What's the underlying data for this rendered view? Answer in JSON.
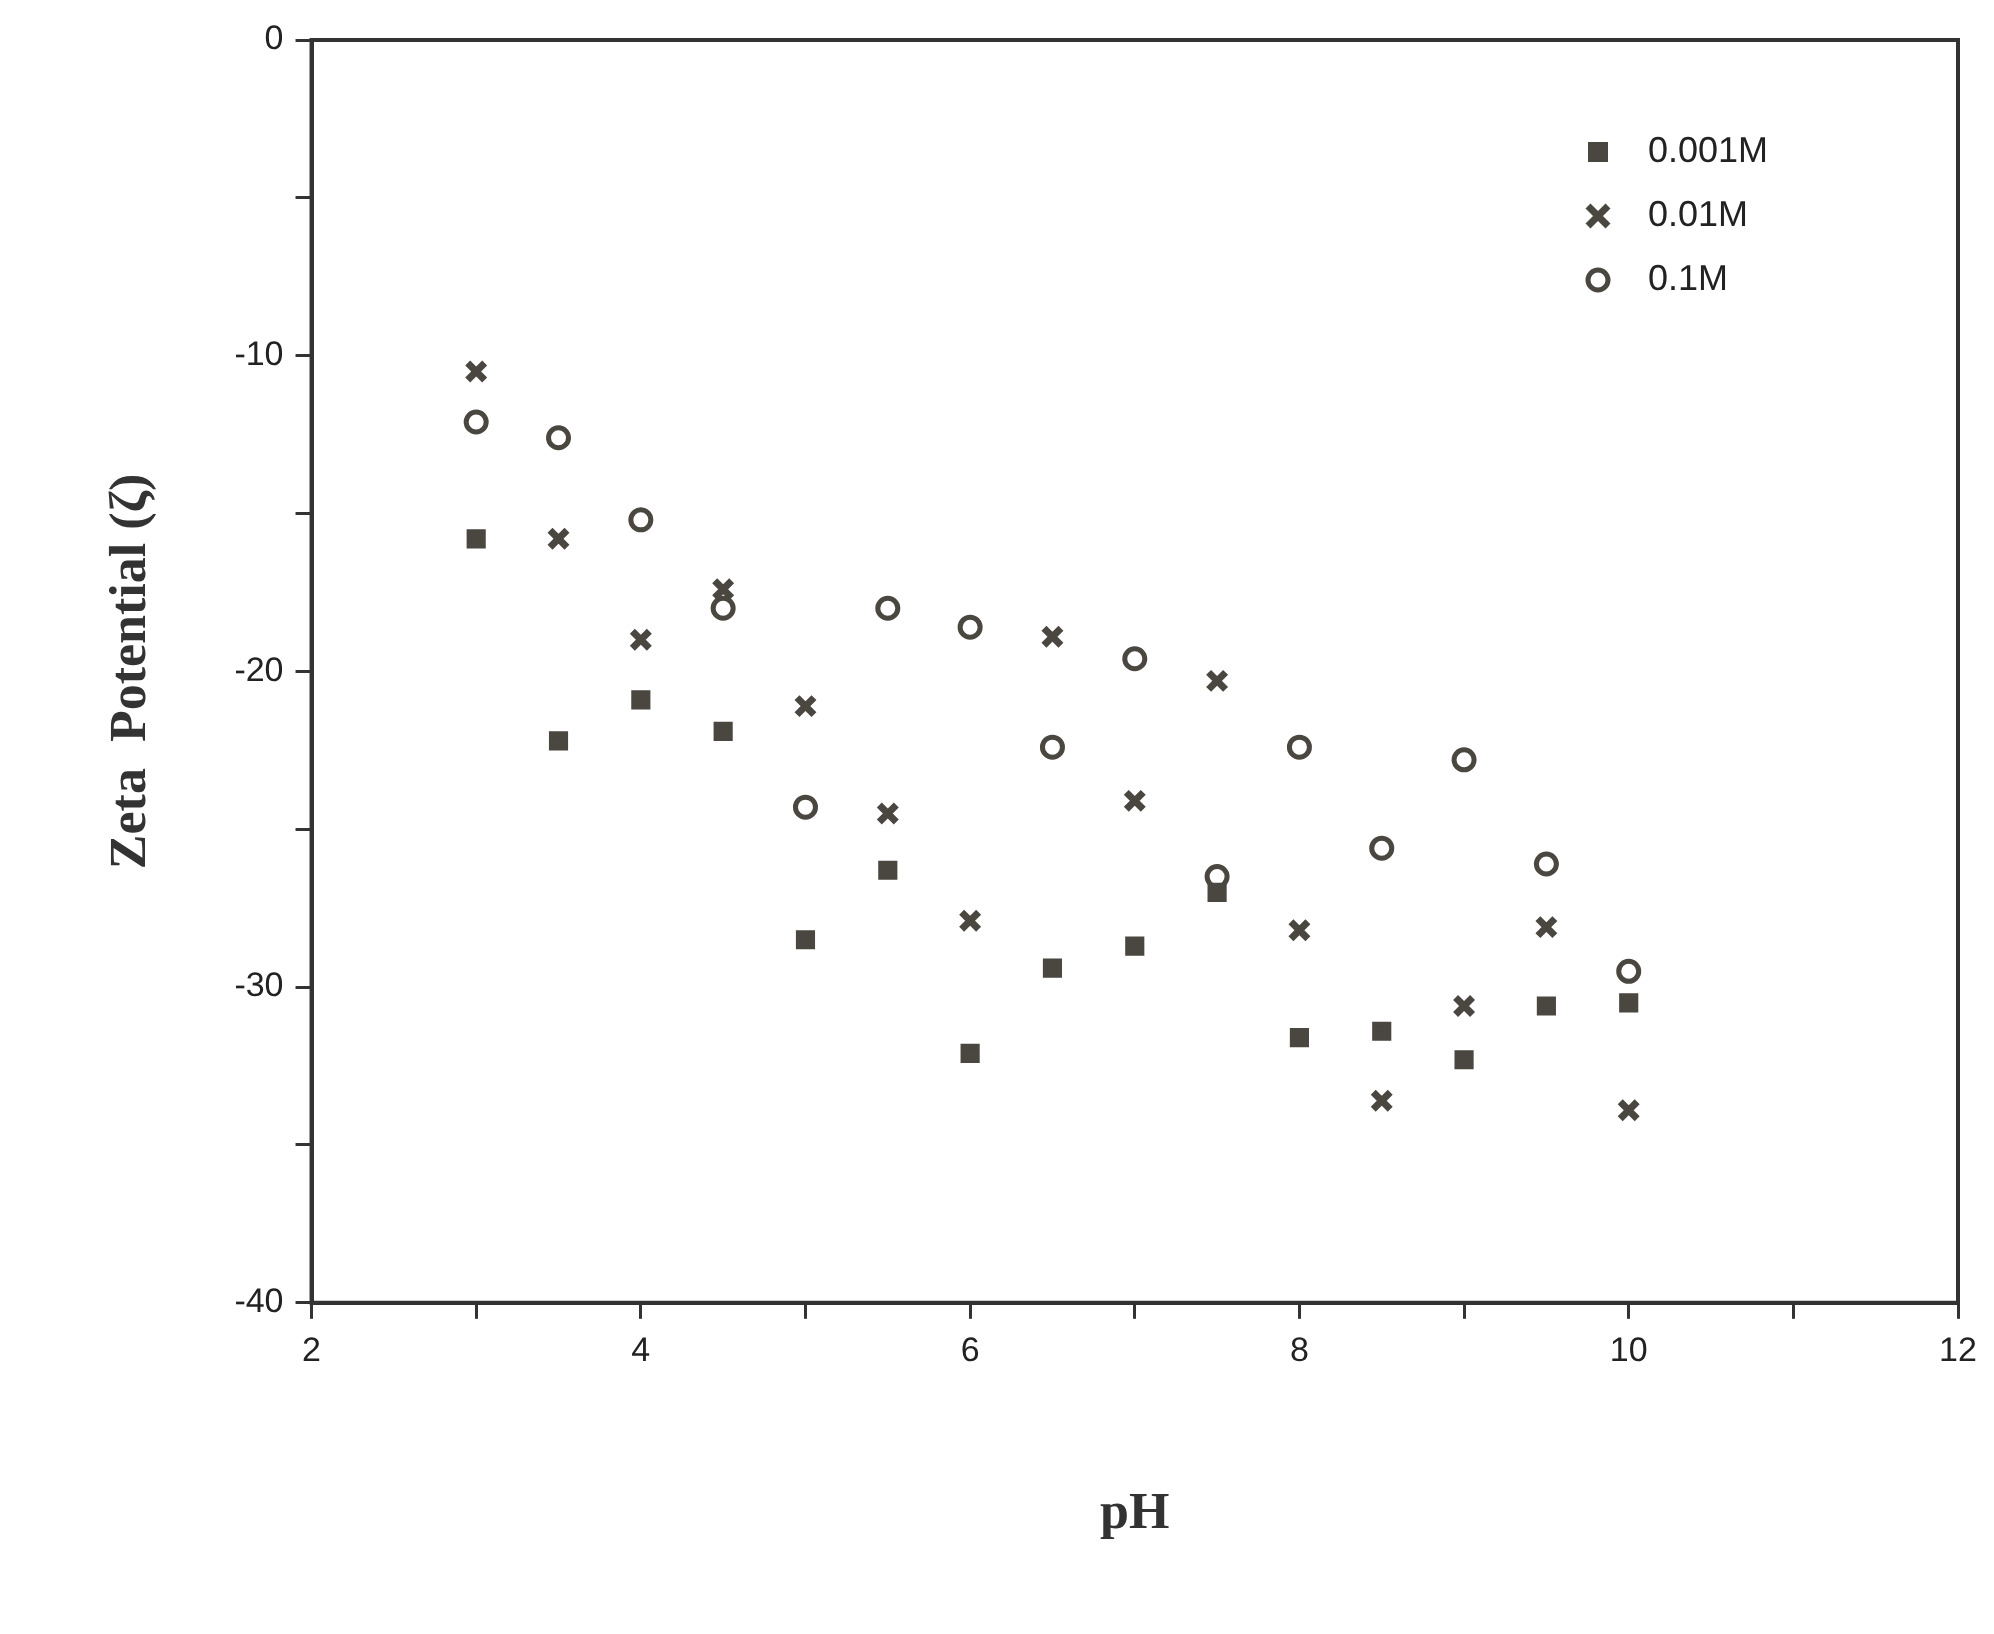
{
  "chart_data": {
    "type": "scatter",
    "xlabel": "pH",
    "ylabel": "Zeta  Potential (ζ)",
    "xlim": [
      2,
      12
    ],
    "ylim": [
      -40,
      0
    ],
    "xticks": [
      2,
      {
        "value": 3,
        "label": null
      },
      4,
      {
        "value": 5,
        "label": null
      },
      6,
      {
        "value": 7,
        "label": null
      },
      8,
      {
        "value": 9,
        "label": null
      },
      10,
      {
        "value": 11,
        "label": null
      },
      12
    ],
    "yticks": [
      -40,
      {
        "value": -35,
        "label": null
      },
      -30,
      {
        "value": -25,
        "label": null
      },
      -20,
      {
        "value": -15,
        "label": null
      },
      -10,
      {
        "value": -5,
        "label": null
      },
      0
    ],
    "grid": false,
    "legend": "top right",
    "x": [
      3,
      3.5,
      4,
      4.5,
      5,
      5.5,
      6,
      6.5,
      7,
      7.5,
      8,
      8.5,
      9,
      9.5,
      10
    ],
    "series": [
      {
        "name": "0.001M",
        "color": "#4a4640",
        "marker": "square",
        "values": [
          -15.8,
          -22.2,
          -20.9,
          -21.9,
          -28.5,
          -26.3,
          -32.1,
          -29.4,
          -28.7,
          -27.0,
          -31.6,
          -31.4,
          -32.3,
          -30.6,
          -30.5
        ]
      },
      {
        "name": "0.01M",
        "color": "#4a4640",
        "marker": "cross",
        "values": [
          -10.5,
          -15.8,
          -19.0,
          -17.4,
          -21.1,
          -24.5,
          -27.9,
          -18.9,
          -24.1,
          -20.3,
          -28.2,
          -33.6,
          -30.6,
          -28.1,
          -33.9
        ]
      },
      {
        "name": "0.1M",
        "color": "#4a4640",
        "marker": "circle",
        "values": [
          -12.1,
          -12.6,
          -15.2,
          -18.0,
          -24.3,
          -18.0,
          -18.6,
          -22.4,
          -19.6,
          -26.5,
          -22.4,
          -25.6,
          -22.8,
          -26.1,
          -29.5
        ]
      }
    ]
  }
}
